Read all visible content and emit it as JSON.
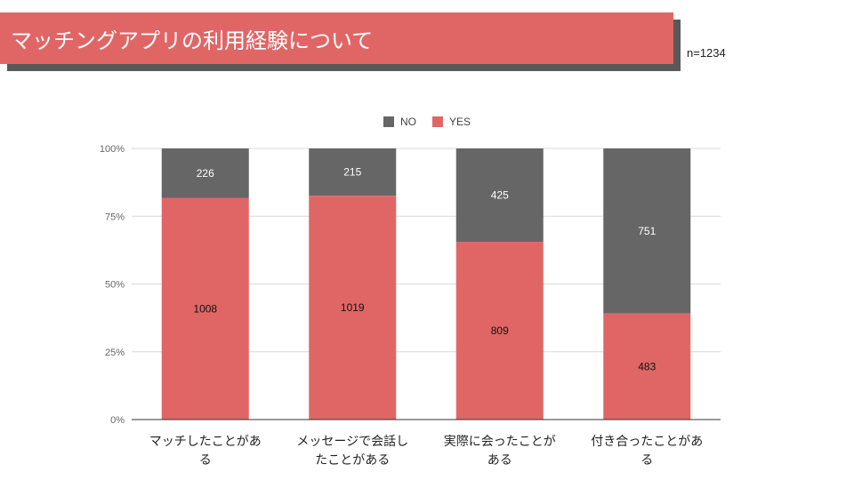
{
  "header": {
    "title": "マッチングアプリの利用経験について",
    "sample_note": "n=1234"
  },
  "colors": {
    "title_bar": "#e06666",
    "title_shadow": "#595959",
    "yes": "#e06666",
    "no": "#666666",
    "grid": "#d9d9d9",
    "axis": "#333333"
  },
  "chart_data": {
    "type": "bar",
    "stacked": "percent",
    "categories": [
      "マッチしたことがある",
      "メッセージで会話したことがある",
      "実際に会ったことがある",
      "付き合ったことがある"
    ],
    "category_label_lines": [
      [
        "マッチしたことがあ",
        "る"
      ],
      [
        "メッセージで会話し",
        "たことがある"
      ],
      [
        "実際に会ったことが",
        "ある"
      ],
      [
        "付き合ったことがあ",
        "る"
      ]
    ],
    "series": [
      {
        "name": "YES",
        "values": [
          1008,
          1019,
          809,
          483
        ]
      },
      {
        "name": "NO",
        "values": [
          226,
          215,
          425,
          751
        ]
      }
    ],
    "legend": {
      "position": "top-center",
      "order": [
        "NO",
        "YES"
      ]
    },
    "y_ticks": [
      "0%",
      "25%",
      "50%",
      "75%",
      "100%"
    ],
    "ylim": [
      0,
      100
    ],
    "grid": true
  }
}
